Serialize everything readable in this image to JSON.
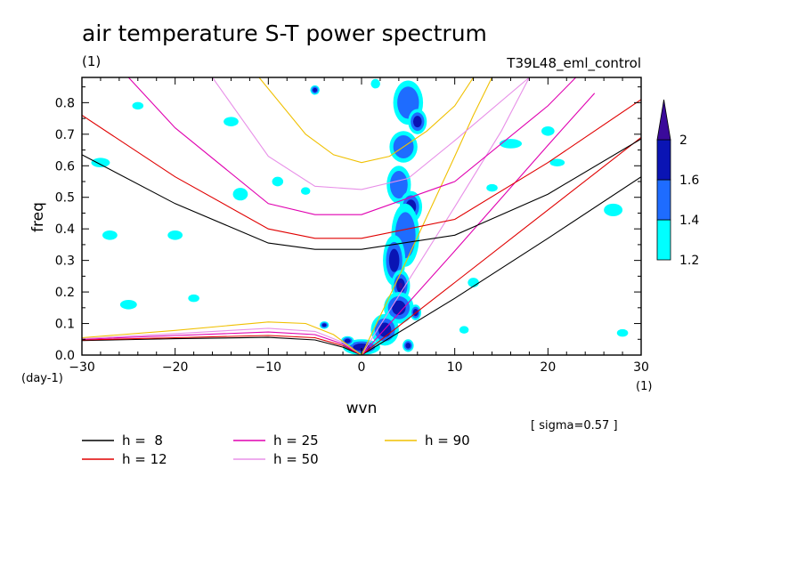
{
  "chart_data": {
    "type": "contour",
    "title": "air temperature S-T power spectrum",
    "subtitle_left": "(1)",
    "subtitle_right": "T39L48_eml_control",
    "xlabel": "wvn",
    "ylabel": "freq",
    "x_unit_label": "(1)",
    "y_unit_label": "(day-1)",
    "xlim": [
      -30,
      30
    ],
    "ylim": [
      0,
      0.88
    ],
    "xticks": [
      -30,
      -20,
      -10,
      0,
      10,
      20,
      30
    ],
    "yticks": [
      0.0,
      0.1,
      0.2,
      0.3,
      0.4,
      0.5,
      0.6,
      0.7,
      0.8
    ],
    "sigma_note": "[ sigma=0.57 ]",
    "colorbar": {
      "levels": [
        "1.2",
        "1.4",
        "1.6",
        "2"
      ],
      "colors": [
        "#00ffff",
        "#1e6cff",
        "#0a14b4",
        "#3a0a9a"
      ]
    },
    "equivalent_depths": [
      {
        "label": "h =  8",
        "h": 8,
        "color": "#000000"
      },
      {
        "label": "h = 12",
        "h": 12,
        "color": "#e00000"
      },
      {
        "label": "h = 25",
        "h": 25,
        "color": "#e000b0"
      },
      {
        "label": "h = 50",
        "h": 50,
        "color": "#e890e8"
      },
      {
        "label": "h = 90",
        "h": 90,
        "color": "#f0c000"
      }
    ],
    "series": [
      {
        "name": "Kelvin h=8",
        "h": 8,
        "color": "#000000",
        "points": [
          [
            0,
            0
          ],
          [
            10,
            0.18
          ],
          [
            20,
            0.37
          ],
          [
            30,
            0.565
          ]
        ]
      },
      {
        "name": "Kelvin h=12",
        "h": 12,
        "color": "#e00000",
        "points": [
          [
            0,
            0
          ],
          [
            10,
            0.23
          ],
          [
            20,
            0.46
          ],
          [
            30,
            0.69
          ]
        ]
      },
      {
        "name": "Kelvin h=25",
        "h": 25,
        "color": "#e000b0",
        "points": [
          [
            0,
            0
          ],
          [
            10,
            0.33
          ],
          [
            20,
            0.665
          ],
          [
            25,
            0.83
          ]
        ]
      },
      {
        "name": "Kelvin h=50",
        "h": 50,
        "color": "#e890e8",
        "points": [
          [
            0,
            0
          ],
          [
            10,
            0.47
          ],
          [
            15,
            0.71
          ],
          [
            18,
            0.88
          ]
        ]
      },
      {
        "name": "Kelvin h=90",
        "h": 90,
        "color": "#f0c000",
        "points": [
          [
            0,
            0
          ],
          [
            5,
            0.31
          ],
          [
            10,
            0.63
          ],
          [
            12,
            0.76
          ],
          [
            14,
            0.88
          ]
        ]
      },
      {
        "name": "IG h=8",
        "h": 8,
        "color": "#000000",
        "points": [
          [
            -30,
            0.635
          ],
          [
            -20,
            0.48
          ],
          [
            -10,
            0.355
          ],
          [
            -5,
            0.335
          ],
          [
            0,
            0.335
          ],
          [
            10,
            0.38
          ],
          [
            20,
            0.51
          ],
          [
            30,
            0.685
          ]
        ]
      },
      {
        "name": "IG h=12",
        "h": 12,
        "color": "#e00000",
        "points": [
          [
            -30,
            0.76
          ],
          [
            -20,
            0.565
          ],
          [
            -10,
            0.4
          ],
          [
            -5,
            0.37
          ],
          [
            0,
            0.37
          ],
          [
            10,
            0.43
          ],
          [
            20,
            0.61
          ],
          [
            30,
            0.81
          ]
        ]
      },
      {
        "name": "IG h=25",
        "h": 25,
        "color": "#e000b0",
        "points": [
          [
            -25,
            0.88
          ],
          [
            -20,
            0.72
          ],
          [
            -10,
            0.48
          ],
          [
            -5,
            0.445
          ],
          [
            0,
            0.445
          ],
          [
            10,
            0.55
          ],
          [
            20,
            0.79
          ],
          [
            23,
            0.88
          ]
        ]
      },
      {
        "name": "IG h=50",
        "h": 50,
        "color": "#e890e8",
        "points": [
          [
            -16,
            0.88
          ],
          [
            -10,
            0.63
          ],
          [
            -5,
            0.535
          ],
          [
            0,
            0.525
          ],
          [
            5,
            0.56
          ],
          [
            10,
            0.68
          ],
          [
            18,
            0.88
          ]
        ]
      },
      {
        "name": "IG h=90",
        "h": 90,
        "color": "#f0c000",
        "points": [
          [
            -11,
            0.88
          ],
          [
            -6,
            0.7
          ],
          [
            -3,
            0.635
          ],
          [
            0,
            0.61
          ],
          [
            3,
            0.63
          ],
          [
            7,
            0.71
          ],
          [
            10,
            0.79
          ],
          [
            12,
            0.88
          ]
        ]
      },
      {
        "name": "Rossby h=8",
        "h": 8,
        "color": "#000000",
        "points": [
          [
            -30,
            0.046
          ],
          [
            -20,
            0.052
          ],
          [
            -10,
            0.056
          ],
          [
            -5,
            0.048
          ],
          [
            -2,
            0.025
          ],
          [
            0,
            0
          ]
        ]
      },
      {
        "name": "Rossby h=12",
        "h": 12,
        "color": "#e00000",
        "points": [
          [
            -30,
            0.048
          ],
          [
            -20,
            0.055
          ],
          [
            -10,
            0.062
          ],
          [
            -5,
            0.055
          ],
          [
            -2,
            0.03
          ],
          [
            0,
            0
          ]
        ]
      },
      {
        "name": "Rossby h=25",
        "h": 25,
        "color": "#e000b0",
        "points": [
          [
            -30,
            0.05
          ],
          [
            -20,
            0.062
          ],
          [
            -10,
            0.073
          ],
          [
            -5,
            0.065
          ],
          [
            -2,
            0.035
          ],
          [
            0,
            0
          ]
        ]
      },
      {
        "name": "Rossby h=50",
        "h": 50,
        "color": "#e890e8",
        "points": [
          [
            -30,
            0.052
          ],
          [
            -20,
            0.068
          ],
          [
            -10,
            0.085
          ],
          [
            -5,
            0.075
          ],
          [
            -2,
            0.04
          ],
          [
            0,
            0
          ]
        ]
      },
      {
        "name": "Rossby h=90",
        "h": 90,
        "color": "#f0c000",
        "points": [
          [
            -30,
            0.055
          ],
          [
            -20,
            0.078
          ],
          [
            -10,
            0.105
          ],
          [
            -6,
            0.1
          ],
          [
            -3,
            0.065
          ],
          [
            0,
            0
          ]
        ]
      }
    ],
    "contour_blobs": [
      {
        "x": 5.0,
        "y": 0.8,
        "rx": 1.6,
        "ry": 0.07,
        "level": 2
      },
      {
        "x": 4.5,
        "y": 0.66,
        "rx": 1.5,
        "ry": 0.05,
        "level": 2
      },
      {
        "x": 6.0,
        "y": 0.74,
        "rx": 1.0,
        "ry": 0.04,
        "level": 3
      },
      {
        "x": 4.0,
        "y": 0.54,
        "rx": 1.3,
        "ry": 0.06,
        "level": 2
      },
      {
        "x": 5.3,
        "y": 0.47,
        "rx": 1.2,
        "ry": 0.05,
        "level": 3
      },
      {
        "x": 4.7,
        "y": 0.38,
        "rx": 1.5,
        "ry": 0.1,
        "level": 2
      },
      {
        "x": 3.5,
        "y": 0.3,
        "rx": 1.2,
        "ry": 0.08,
        "level": 3
      },
      {
        "x": 4.2,
        "y": 0.22,
        "rx": 1.0,
        "ry": 0.05,
        "level": 4
      },
      {
        "x": 4.0,
        "y": 0.15,
        "rx": 1.6,
        "ry": 0.05,
        "level": 3
      },
      {
        "x": 2.5,
        "y": 0.08,
        "rx": 1.5,
        "ry": 0.05,
        "level": 3
      },
      {
        "x": 5.8,
        "y": 0.135,
        "rx": 0.6,
        "ry": 0.025,
        "level": 4
      },
      {
        "x": 0.0,
        "y": 0.025,
        "rx": 2.0,
        "ry": 0.025,
        "level": 3
      },
      {
        "x": -1.5,
        "y": 0.045,
        "rx": 0.7,
        "ry": 0.015,
        "level": 3
      },
      {
        "x": -4.0,
        "y": 0.095,
        "rx": 0.5,
        "ry": 0.012,
        "level": 3
      },
      {
        "x": 5.0,
        "y": 0.03,
        "rx": 0.6,
        "ry": 0.02,
        "level": 3
      },
      {
        "x": -5.0,
        "y": 0.84,
        "rx": 0.5,
        "ry": 0.015,
        "level": 3
      },
      {
        "x": -13.0,
        "y": 0.51,
        "rx": 0.8,
        "ry": 0.02,
        "level": 1
      },
      {
        "x": -28.0,
        "y": 0.61,
        "rx": 1.0,
        "ry": 0.015,
        "level": 1
      },
      {
        "x": 16.0,
        "y": 0.67,
        "rx": 1.2,
        "ry": 0.015,
        "level": 1
      },
      {
        "x": 27.0,
        "y": 0.46,
        "rx": 1.0,
        "ry": 0.02,
        "level": 1
      },
      {
        "x": -20.0,
        "y": 0.38,
        "rx": 0.8,
        "ry": 0.015,
        "level": 1
      },
      {
        "x": -27.0,
        "y": 0.38,
        "rx": 0.8,
        "ry": 0.015,
        "level": 1
      },
      {
        "x": 12.0,
        "y": 0.23,
        "rx": 0.6,
        "ry": 0.015,
        "level": 1
      },
      {
        "x": -25.0,
        "y": 0.16,
        "rx": 0.9,
        "ry": 0.015,
        "level": 1
      },
      {
        "x": 20.0,
        "y": 0.71,
        "rx": 0.7,
        "ry": 0.015,
        "level": 1
      },
      {
        "x": -14.0,
        "y": 0.74,
        "rx": 0.8,
        "ry": 0.015,
        "level": 1
      },
      {
        "x": -9.0,
        "y": 0.55,
        "rx": 0.6,
        "ry": 0.015,
        "level": 1
      },
      {
        "x": 21.0,
        "y": 0.61,
        "rx": 0.8,
        "ry": 0.012,
        "level": 1
      },
      {
        "x": -6.0,
        "y": 0.52,
        "rx": 0.5,
        "ry": 0.012,
        "level": 1
      },
      {
        "x": 28.0,
        "y": 0.07,
        "rx": 0.6,
        "ry": 0.012,
        "level": 1
      },
      {
        "x": -18.0,
        "y": 0.18,
        "rx": 0.6,
        "ry": 0.012,
        "level": 1
      },
      {
        "x": 11.0,
        "y": 0.08,
        "rx": 0.5,
        "ry": 0.012,
        "level": 1
      },
      {
        "x": 1.5,
        "y": 0.86,
        "rx": 0.5,
        "ry": 0.015,
        "level": 1
      },
      {
        "x": 14.0,
        "y": 0.53,
        "rx": 0.6,
        "ry": 0.012,
        "level": 1
      },
      {
        "x": -24.0,
        "y": 0.79,
        "rx": 0.6,
        "ry": 0.012,
        "level": 1
      }
    ]
  }
}
